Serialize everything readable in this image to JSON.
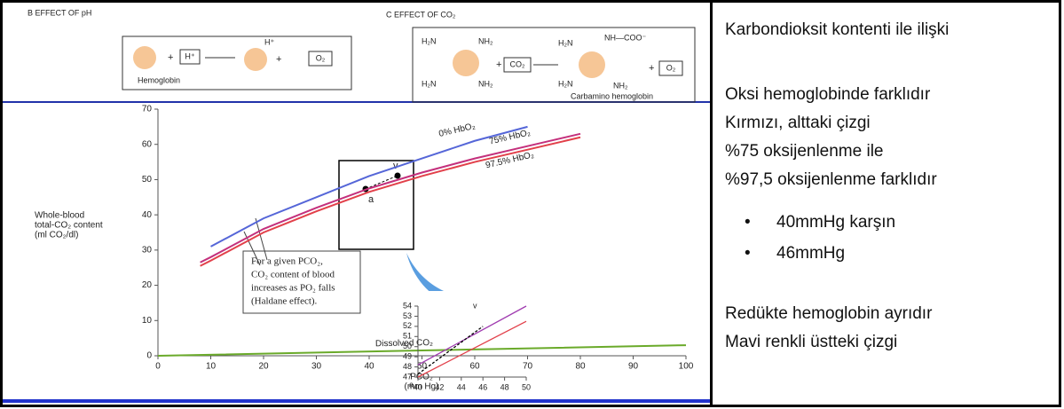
{
  "figure": {
    "panel_b": {
      "title": "B  EFFECT OF pH",
      "hemoglobin": "Hemoglobin",
      "h_plus": "H⁺",
      "h_plus_out": "H⁺",
      "o2": "O₂"
    },
    "panel_c": {
      "title": "C  EFFECT OF CO₂",
      "h2n_1": "H₂N",
      "nh2_1": "NH₂",
      "h2n_2": "H₂N",
      "nh2_2": "NH₂",
      "co2": "CO₂",
      "h2n_3": "H₂N",
      "nhcoo": "NH—COO⁻",
      "h2n_4": "H₂N",
      "nh2_3": "NH₂",
      "o2": "O₂",
      "carbamino": "Carbamino hemoglobin"
    },
    "point_a": "a",
    "point_v": "v",
    "inset_a": "a",
    "inset_v": "v",
    "note_lines": [
      "For a given PCO₂,",
      "CO₂ content of blood",
      "increases as PO₂ falls",
      "(Haldane effect)."
    ]
  },
  "chart_data": [
    {
      "type": "line",
      "ylabel_lines": [
        "Whole-blood",
        "total-CO₂ content",
        "(ml CO₂/dl)"
      ],
      "xlabel_lines": [
        "PCO₂",
        "(mm Hg)"
      ],
      "xlim": [
        0,
        100
      ],
      "xticks": [
        0,
        10,
        20,
        30,
        40,
        50,
        60,
        70,
        80,
        90,
        100
      ],
      "ylim": [
        0,
        70
      ],
      "yticks": [
        0,
        10,
        20,
        30,
        40,
        50,
        60,
        70
      ],
      "series": [
        {
          "name": "0% HbO₂",
          "color": "#5566d8",
          "x": [
            10,
            20,
            30,
            40,
            50,
            60,
            70
          ],
          "values": [
            31,
            39,
            45,
            51,
            56,
            61,
            65
          ]
        },
        {
          "name": "75% HbO₂",
          "color": "#c4307c",
          "x": [
            8,
            10,
            20,
            30,
            40,
            50,
            60,
            70,
            80
          ],
          "values": [
            26.5,
            28,
            36,
            42,
            47.5,
            52,
            56,
            59.5,
            63
          ]
        },
        {
          "name": "97.5% HbO₂",
          "color": "#e2404a",
          "x": [
            8,
            10,
            20,
            30,
            40,
            50,
            60,
            70,
            80
          ],
          "values": [
            25.5,
            27,
            35,
            41,
            46.5,
            51,
            55,
            58.5,
            62
          ]
        },
        {
          "name": "Dissolved CO₂",
          "color": "#6aaa2a",
          "x": [
            0,
            50,
            100
          ],
          "values": [
            0,
            1.5,
            3
          ]
        }
      ]
    },
    {
      "type": "line",
      "xlim": [
        40,
        50
      ],
      "xticks": [
        40,
        42,
        44,
        46,
        48,
        50
      ],
      "ylim": [
        47,
        54
      ],
      "yticks": [
        47,
        48,
        49,
        50,
        51,
        52,
        53,
        54
      ],
      "series": [
        {
          "color": "#a03cb0",
          "x": [
            40,
            50
          ],
          "values": [
            48.2,
            54
          ]
        },
        {
          "color": "#e2404a",
          "x": [
            40,
            50
          ],
          "values": [
            47,
            52.5
          ]
        },
        {
          "color": "#000000",
          "style": "dashed",
          "x": [
            40,
            46
          ],
          "values": [
            47.3,
            52
          ]
        }
      ]
    }
  ],
  "side_text": {
    "heading": "Karbondioksit kontenti ile ilişki",
    "lines": [
      "Oksi hemoglobinde farklıdır",
      "Kırmızı, alttaki çizgi",
      "%75 oksijenlenme ile",
      "%97,5 oksijenlenme farklıdır"
    ],
    "bullets": [
      "40mmHg karşın",
      "46mmHg"
    ],
    "footer": [
      "Redükte hemoglobin ayrıdır",
      "Mavi renkli üstteki çizgi"
    ]
  }
}
